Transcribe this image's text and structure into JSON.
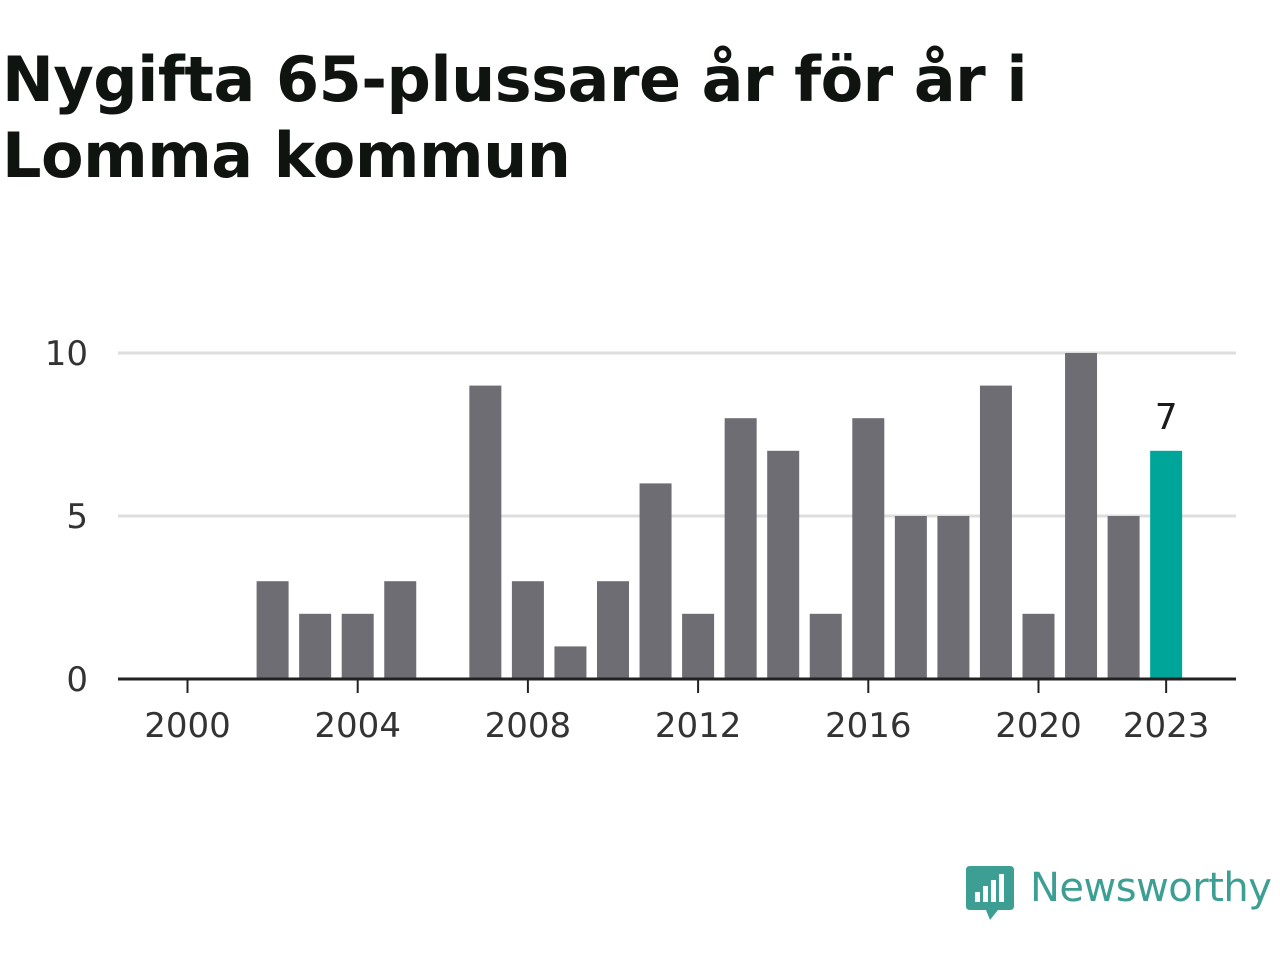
{
  "title": "Nygifta 65-plussare år för år i Lomma kommun",
  "brand": {
    "name": "Newsworthy",
    "icon": "newsworthy-logo-icon",
    "color": "#3d9e93"
  },
  "chart_data": {
    "type": "bar",
    "title": "Nygifta 65-plussare år för år i Lomma kommun",
    "xlabel": "",
    "ylabel": "",
    "categories": [
      "2000",
      "2001",
      "2002",
      "2003",
      "2004",
      "2005",
      "2006",
      "2007",
      "2008",
      "2009",
      "2010",
      "2011",
      "2012",
      "2013",
      "2014",
      "2015",
      "2016",
      "2017",
      "2018",
      "2019",
      "2020",
      "2021",
      "2022",
      "2023"
    ],
    "values": [
      0,
      0,
      3,
      2,
      2,
      3,
      0,
      9,
      3,
      1,
      3,
      6,
      2,
      8,
      7,
      2,
      8,
      5,
      5,
      9,
      2,
      10,
      5,
      7
    ],
    "ylim": [
      0,
      10
    ],
    "yticks": [
      0,
      5,
      10
    ],
    "xticks": [
      "2000",
      "2004",
      "2008",
      "2012",
      "2016",
      "2020",
      "2023"
    ],
    "highlight": {
      "category": "2023",
      "label": "7"
    },
    "grid": true,
    "colors": {
      "bar": "#6e6d73",
      "highlight": "#00a59a",
      "grid": "#dedede",
      "axis": "#222222",
      "text": "#333333"
    }
  }
}
